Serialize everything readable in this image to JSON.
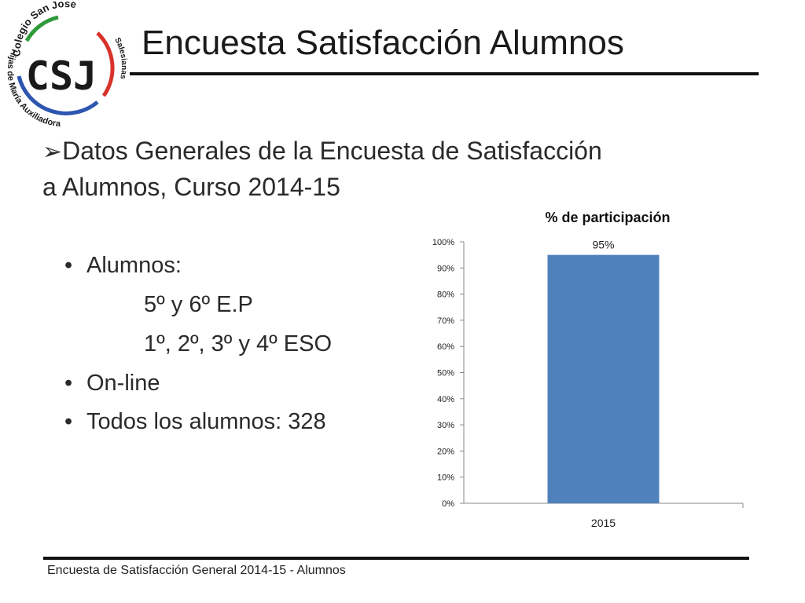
{
  "logo": {
    "letters": "CSJ",
    "arc_top": "Colegio San José",
    "arc_left": "Hijas de María Auxiliadora",
    "arc_right": "Salesianas",
    "colors": {
      "blue": "#2e56b0",
      "red": "#d8322b",
      "green": "#2f9a3a",
      "ink": "#1a1a1a"
    }
  },
  "slide": {
    "title": "Encuesta Satisfacción Alumnos",
    "heading_line1": "Datos Generales de la Encuesta de Satisfacción",
    "heading_line2": "a Alumnos, Curso 2014-15",
    "arrow_icon": "arrow-bullet-icon",
    "bullets": {
      "b1": "Alumnos:",
      "b1_sub1": "5º y 6º E.P",
      "b1_sub2": "1º, 2º, 3º y 4º ESO",
      "b2": "On-line",
      "b3": "Todos los alumnos: 328"
    },
    "footer": "Encuesta  de Satisfacción General 2014-15 - Alumnos"
  },
  "chart_data": {
    "type": "bar",
    "title": "% de participación",
    "categories": [
      "2015"
    ],
    "values": [
      95
    ],
    "data_labels": [
      "95%"
    ],
    "ylim": [
      0,
      100
    ],
    "yticks": [
      "0%",
      "10%",
      "20%",
      "30%",
      "40%",
      "50%",
      "60%",
      "70%",
      "80%",
      "90%",
      "100%"
    ],
    "grid": false,
    "legend": "none",
    "bar_color": "#4f81bd"
  }
}
